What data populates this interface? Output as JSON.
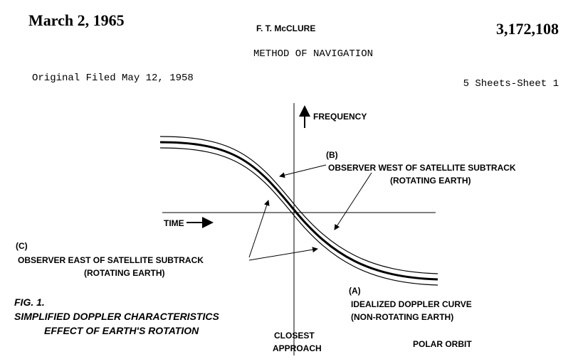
{
  "header": {
    "date": "March 2, 1965",
    "inventor": "F. T. McCLURE",
    "patent_number": "3,172,108",
    "title": "METHOD OF NAVIGATION",
    "filed": "Original Filed May 12, 1958",
    "sheets": "5 Sheets-Sheet 1"
  },
  "figure": {
    "y_axis_label": "FREQUENCY",
    "x_axis_label": "TIME",
    "curve_b": {
      "letter": "(B)",
      "line1": "OBSERVER WEST OF SATELLITE SUBTRACK",
      "line2": "(ROTATING EARTH)"
    },
    "curve_c": {
      "letter": "(C)",
      "line1": "OBSERVER EAST OF SATELLITE SUBTRACK",
      "line2": "(ROTATING EARTH)"
    },
    "curve_a": {
      "letter": "(A)",
      "line1": "IDEALIZED DOPPLER CURVE",
      "line2": "(NON-ROTATING EARTH)"
    },
    "closest_approach": [
      "CLOSEST",
      "APPROACH"
    ],
    "orbit": "POLAR ORBIT",
    "caption": {
      "number": "FIG. 1.",
      "line1": "SIMPLIFIED DOPPLER CHARACTERISTICS",
      "line2": "EFFECT OF EARTH'S ROTATION"
    }
  }
}
